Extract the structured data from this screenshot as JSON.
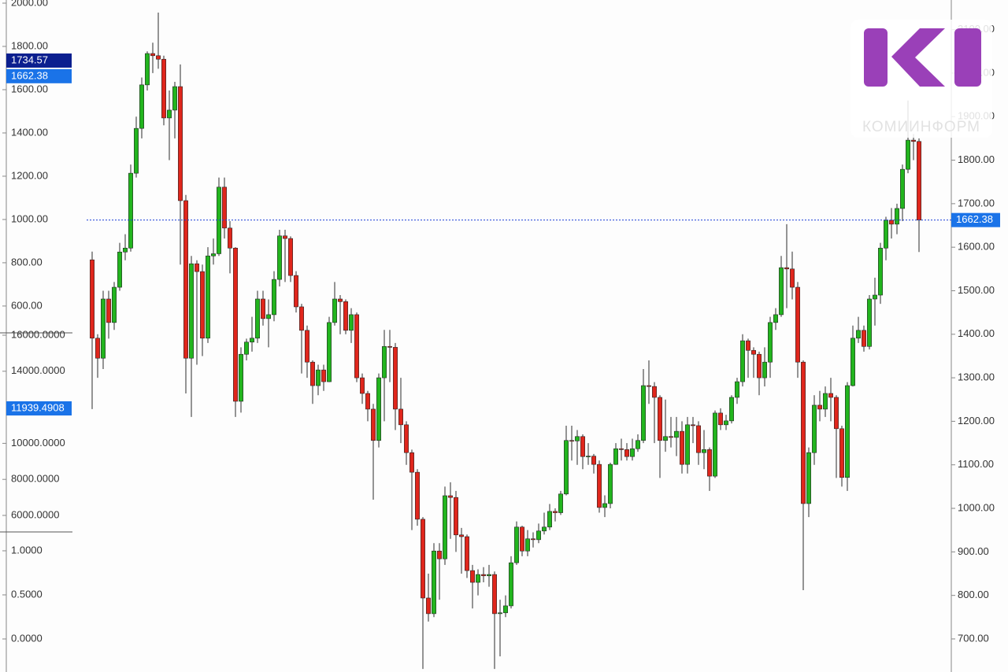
{
  "chart_data": {
    "type": "candlestick",
    "open": [
      1571,
      1391,
      1345,
      1481,
      1427,
      1508,
      1589,
      1598,
      1770,
      1873,
      1973,
      2045,
      2040,
      2032,
      1897,
      1915,
      1969,
      1707,
      1345,
      1562,
      1544,
      1391,
      1580,
      1585,
      1738,
      1644,
      1598,
      1246,
      1354,
      1382,
      1391,
      1481,
      1436,
      1445,
      1526,
      1626,
      1620,
      1535,
      1463,
      1409,
      1336,
      1282,
      1318,
      1291,
      1427,
      1481,
      1475,
      1409,
      1445,
      1300,
      1264,
      1228,
      1156,
      1300,
      1372,
      1370,
      1228,
      1192,
      1128,
      1083,
      975,
      794,
      758,
      902,
      884,
      1029,
      1025,
      939,
      935,
      857,
      830,
      848,
      845,
      848,
      758,
      760,
      776,
      875,
      957,
      902,
      930,
      928,
      948,
      957,
      993,
      990,
      1033,
      1156,
      1155,
      1165,
      1119,
      1120,
      1101,
      1002,
      1011,
      1101,
      1137,
      1135,
      1119,
      1137,
      1156,
      1282,
      1280,
      1255,
      1156,
      1165,
      1163,
      1177,
      1101,
      1192,
      1190,
      1128,
      1135,
      1074,
      1219,
      1192,
      1201,
      1255,
      1291,
      1385,
      1363,
      1354,
      1300,
      1336,
      1427,
      1445,
      1553,
      1550,
      1508,
      1336,
      1011,
      1128,
      1237,
      1228,
      1264,
      1255,
      1183,
      1071,
      1282,
      1391,
      1409,
      1372,
      1481,
      1490,
      1598,
      1662,
      1653,
      1689,
      1779,
      1846,
      1843
    ],
    "high": [
      1590,
      1400,
      1500,
      1500,
      1520,
      1610,
      1630,
      1790,
      1900,
      1990,
      2050,
      2070,
      2139,
      2040,
      1960,
      1980,
      2020,
      1720,
      1580,
      1570,
      1560,
      1600,
      1620,
      1760,
      1760,
      1660,
      1600,
      1370,
      1390,
      1440,
      1500,
      1500,
      1480,
      1545,
      1640,
      1640,
      1625,
      1545,
      1470,
      1420,
      1340,
      1330,
      1330,
      1440,
      1520,
      1490,
      1480,
      1460,
      1450,
      1310,
      1270,
      1240,
      1310,
      1410,
      1410,
      1380,
      1300,
      1200,
      1135,
      1090,
      980,
      850,
      920,
      920,
      1050,
      1060,
      1040,
      955,
      940,
      870,
      860,
      865,
      870,
      855,
      790,
      800,
      890,
      970,
      960,
      950,
      945,
      965,
      990,
      1010,
      1000,
      1040,
      1190,
      1190,
      1180,
      1170,
      1150,
      1125,
      1110,
      1030,
      1105,
      1150,
      1160,
      1150,
      1160,
      1170,
      1320,
      1340,
      1290,
      1260,
      1250,
      1210,
      1210,
      1200,
      1210,
      1210,
      1200,
      1180,
      1140,
      1225,
      1230,
      1215,
      1260,
      1300,
      1400,
      1390,
      1370,
      1360,
      1370,
      1440,
      1460,
      1580,
      1653,
      1590,
      1520,
      1340,
      1140,
      1260,
      1270,
      1280,
      1300,
      1260,
      1190,
      1290,
      1420,
      1440,
      1420,
      1490,
      1530,
      1610,
      1670,
      1690,
      1700,
      1790,
      1937,
      1860,
      1850
    ],
    "low": [
      1228,
      1300,
      1320,
      1390,
      1410,
      1500,
      1570,
      1590,
      1760,
      1850,
      1960,
      2000,
      2010,
      1880,
      1800,
      1850,
      1560,
      1264,
      1210,
      1330,
      1350,
      1380,
      1560,
      1580,
      1620,
      1540,
      1210,
      1220,
      1340,
      1360,
      1380,
      1420,
      1370,
      1430,
      1510,
      1520,
      1520,
      1450,
      1310,
      1300,
      1240,
      1260,
      1270,
      1290,
      1420,
      1400,
      1400,
      1380,
      1290,
      1240,
      1200,
      1020,
      1140,
      1200,
      1290,
      1180,
      1150,
      1100,
      950,
      960,
      631,
      740,
      750,
      790,
      870,
      930,
      900,
      850,
      840,
      770,
      800,
      830,
      820,
      631,
      660,
      750,
      770,
      870,
      890,
      890,
      910,
      920,
      940,
      950,
      970,
      985,
      1030,
      1110,
      1100,
      1090,
      1100,
      1080,
      990,
      980,
      1000,
      1100,
      1110,
      1110,
      1110,
      1130,
      1150,
      1240,
      1150,
      1070,
      1130,
      1140,
      1120,
      1080,
      1080,
      1150,
      1100,
      1090,
      1040,
      1070,
      1180,
      1180,
      1195,
      1240,
      1280,
      1300,
      1300,
      1260,
      1280,
      1300,
      1410,
      1440,
      1460,
      1480,
      1300,
      812,
      980,
      1100,
      1200,
      1210,
      1200,
      1070,
      1050,
      1040,
      1280,
      1380,
      1360,
      1365,
      1420,
      1470,
      1570,
      1620,
      1630,
      1660,
      1770,
      1800,
      1589
    ],
    "close": [
      1391,
      1345,
      1481,
      1427,
      1508,
      1589,
      1598,
      1770,
      1873,
      1973,
      2045,
      2040,
      2032,
      1897,
      1915,
      1969,
      1707,
      1345,
      1562,
      1544,
      1391,
      1580,
      1585,
      1738,
      1644,
      1598,
      1246,
      1354,
      1382,
      1391,
      1481,
      1436,
      1445,
      1526,
      1626,
      1620,
      1535,
      1463,
      1409,
      1336,
      1282,
      1318,
      1291,
      1427,
      1481,
      1475,
      1409,
      1445,
      1300,
      1264,
      1228,
      1156,
      1300,
      1372,
      1370,
      1228,
      1192,
      1128,
      1083,
      975,
      794,
      758,
      902,
      884,
      1029,
      1025,
      939,
      935,
      857,
      830,
      848,
      845,
      848,
      758,
      760,
      776,
      875,
      957,
      902,
      930,
      928,
      948,
      957,
      993,
      990,
      1033,
      1156,
      1155,
      1165,
      1119,
      1120,
      1101,
      1002,
      1011,
      1101,
      1137,
      1135,
      1119,
      1137,
      1156,
      1282,
      1280,
      1255,
      1156,
      1165,
      1163,
      1177,
      1101,
      1192,
      1190,
      1128,
      1135,
      1074,
      1219,
      1192,
      1201,
      1255,
      1291,
      1385,
      1363,
      1354,
      1300,
      1336,
      1427,
      1445,
      1553,
      1550,
      1508,
      1336,
      1011,
      1128,
      1237,
      1228,
      1264,
      1255,
      1183,
      1071,
      1282,
      1391,
      1409,
      1372,
      1481,
      1490,
      1598,
      1662,
      1653,
      1689,
      1779,
      1846,
      1843,
      1662.38
    ],
    "colors": {
      "up": "#22b51e",
      "down": "#e0261c"
    },
    "ylim": [
      624,
      2168
    ],
    "yticks": [
      {
        "value": 700,
        "label": "700.00"
      },
      {
        "value": 800,
        "label": "800.00"
      },
      {
        "value": 900,
        "label": "900.00"
      },
      {
        "value": 1000,
        "label": "1000.00"
      },
      {
        "value": 1100,
        "label": "1100.00"
      },
      {
        "value": 1200,
        "label": "1200.00"
      },
      {
        "value": 1300,
        "label": "1300.00"
      },
      {
        "value": 1400,
        "label": "1400.00"
      },
      {
        "value": 1500,
        "label": "1500.00"
      },
      {
        "value": 1600,
        "label": "1600.00"
      },
      {
        "value": 1700,
        "label": "1700.00"
      },
      {
        "value": 1800,
        "label": "1800.00"
      },
      {
        "value": 1900,
        "label": "1900.00"
      },
      {
        "value": 2000,
        "label": "2000.00"
      },
      {
        "value": 2100,
        "label": "2100.00"
      }
    ],
    "last_price": 1662.38,
    "panes": [
      {
        "ylim": [
          476,
          2014.5
        ],
        "yticks": [
          {
            "value": 600,
            "label": "600.00"
          },
          {
            "value": 800,
            "label": "800.00"
          },
          {
            "value": 1000,
            "label": "1000.00"
          },
          {
            "value": 1200,
            "label": "1200.00"
          },
          {
            "value": 1400,
            "label": "1400.00"
          },
          {
            "value": 1600,
            "label": "1600.00"
          },
          {
            "value": 1800,
            "label": "1800.00"
          },
          {
            "value": 2000,
            "label": "2000.00"
          }
        ],
        "markers": [
          1734.57,
          1662.38
        ]
      },
      {
        "ylim": [
          5083,
          16131
        ],
        "yticks": [
          {
            "value": 6000,
            "label": "6000.0000"
          },
          {
            "value": 8000,
            "label": "8000.0000"
          },
          {
            "value": 10000,
            "label": "10000.0000"
          },
          {
            "value": 14000,
            "label": "14000.0000"
          },
          {
            "value": 16000,
            "label": "16000.0000"
          }
        ],
        "markers": [
          11939.4908
        ]
      },
      {
        "ylim": [
          -0.375,
          1.214
        ],
        "yticks": [
          {
            "value": 0,
            "label": "0.0000"
          },
          {
            "value": 0.5,
            "label": "0.5000"
          },
          {
            "value": 1,
            "label": "1.0000"
          }
        ]
      }
    ]
  },
  "logo": {
    "text": "КОМИИНФОРМ"
  }
}
